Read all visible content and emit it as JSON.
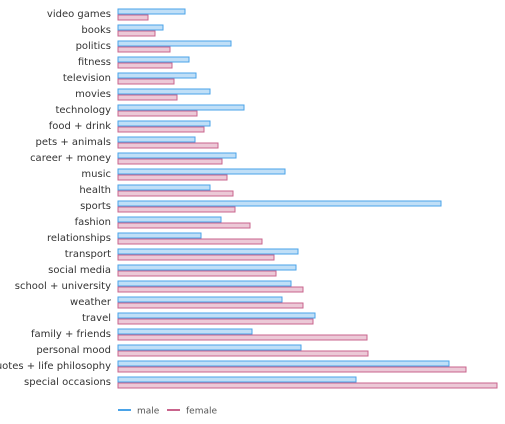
{
  "chart_data": {
    "type": "bar",
    "orientation": "horizontal",
    "categories": [
      "video games",
      "books",
      "politics",
      "fitness",
      "television",
      "movies",
      "technology",
      "food + drink",
      "pets + animals",
      "career + money",
      "music",
      "health",
      "sports",
      "fashion",
      "relationships",
      "transport",
      "social media",
      "school + university",
      "weather",
      "travel",
      "family + friends",
      "personal mood",
      "quotes + life philosophy",
      "special occasions"
    ],
    "series": [
      {
        "name": "male",
        "color": "#4aa3e8",
        "values": [
          67,
          45,
          113,
          71,
          78,
          92,
          126,
          92,
          77,
          118,
          167,
          92,
          323,
          103,
          83,
          180,
          178,
          173,
          164,
          197,
          134,
          183,
          331,
          238
        ]
      },
      {
        "name": "female",
        "color": "#c9648c",
        "values": [
          30,
          37,
          52,
          54,
          56,
          59,
          79,
          86,
          100,
          104,
          109,
          115,
          117,
          132,
          144,
          156,
          158,
          185,
          185,
          195,
          249,
          250,
          348,
          379
        ]
      }
    ],
    "xlabel": "",
    "ylabel": "",
    "xlim": [
      0,
      380
    ],
    "grid": false,
    "legend": "bottom-left"
  }
}
